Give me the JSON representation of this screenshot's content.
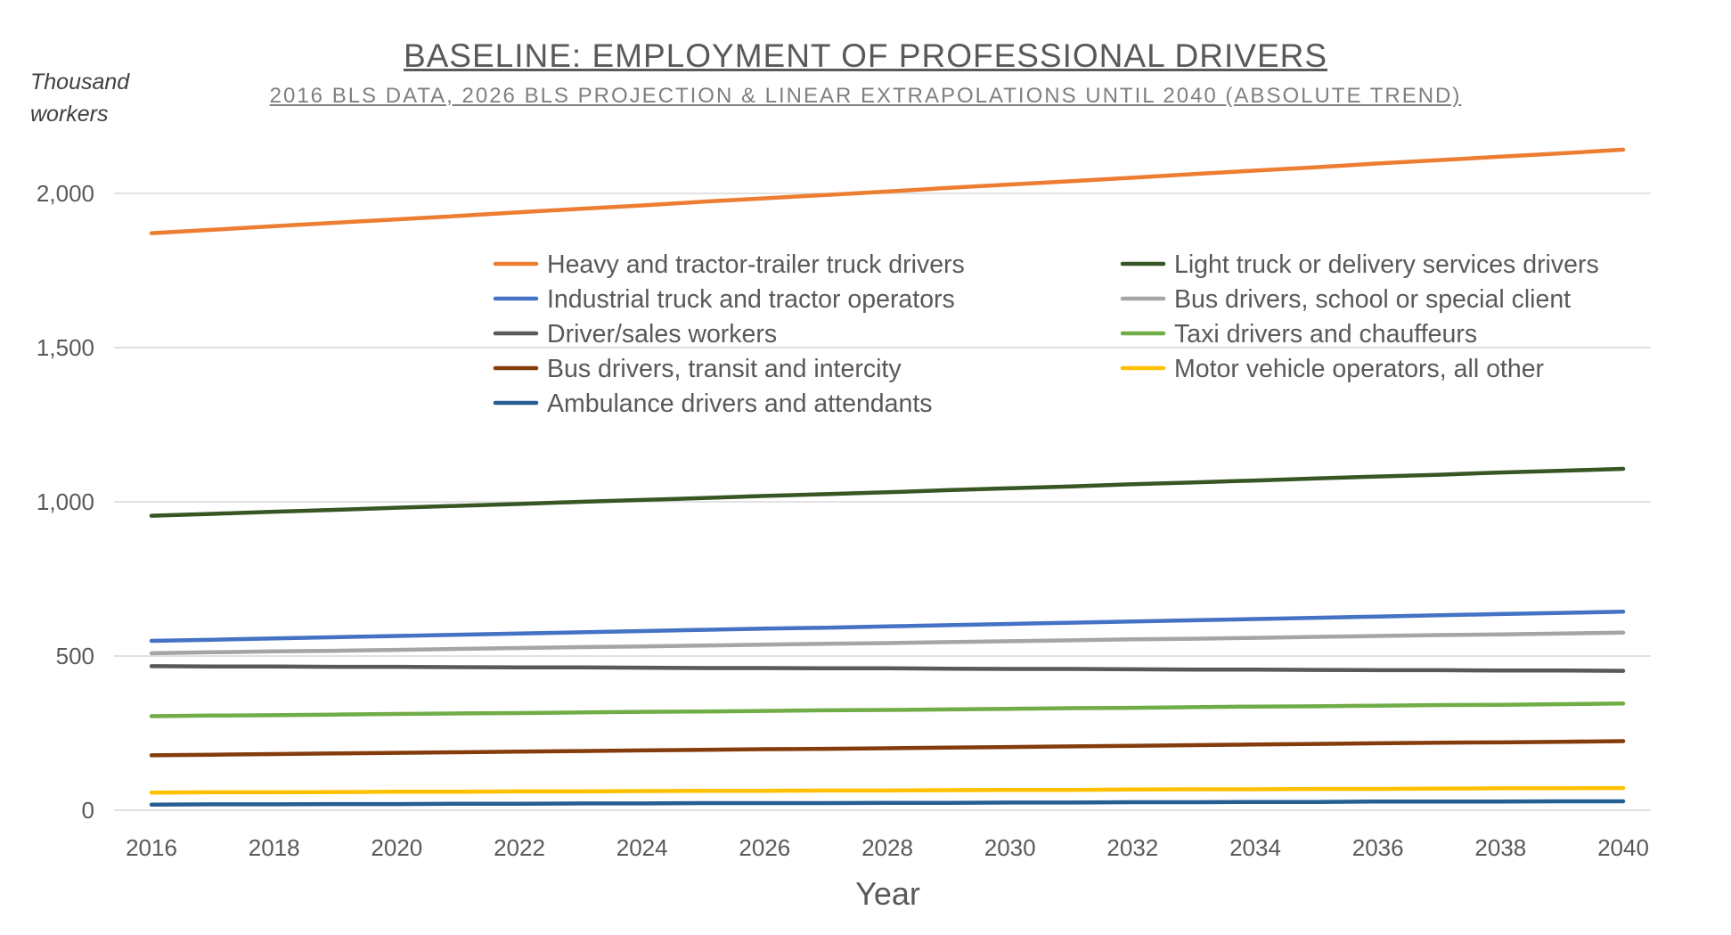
{
  "chart_data": {
    "type": "line",
    "title": "BASELINE: EMPLOYMENT OF PROFESSIONAL DRIVERS",
    "subtitle": "2016 BLS DATA, 2026 BLS PROJECTION & LINEAR EXTRAPOLATIONS UNTIL 2040 (ABSOLUTE TREND)",
    "ylabel": "Thousand workers",
    "xlabel": "Year",
    "x": [
      2016,
      2017,
      2018,
      2019,
      2020,
      2021,
      2022,
      2023,
      2024,
      2025,
      2026,
      2027,
      2028,
      2029,
      2030,
      2031,
      2032,
      2033,
      2034,
      2035,
      2036,
      2037,
      2038,
      2039,
      2040
    ],
    "xticks": [
      "2016",
      "2018",
      "2020",
      "2022",
      "2024",
      "2026",
      "2028",
      "2030",
      "2032",
      "2034",
      "2036",
      "2038",
      "2040"
    ],
    "ylim": [
      0,
      2000
    ],
    "yticks": [
      "0",
      "500",
      "1,000",
      "1,500",
      "2,000"
    ],
    "grid": true,
    "legend_position": "top-center",
    "series": [
      {
        "name": "Heavy and tractor-trailer truck drivers",
        "color": "#ED7D31",
        "values": [
          1871,
          1882,
          1894,
          1905,
          1916,
          1927,
          1939,
          1950,
          1961,
          1973,
          1984,
          1995,
          2006,
          2018,
          2029,
          2040,
          2051,
          2063,
          2074,
          2085,
          2097,
          2108,
          2119,
          2130,
          2142
        ]
      },
      {
        "name": "Light truck or delivery services drivers",
        "color": "#375623",
        "values": [
          955,
          961,
          968,
          974,
          981,
          987,
          993,
          1000,
          1006,
          1012,
          1019,
          1025,
          1031,
          1038,
          1044,
          1050,
          1057,
          1063,
          1069,
          1076,
          1082,
          1088,
          1095,
          1101,
          1107
        ]
      },
      {
        "name": "Industrial truck and tractor operators",
        "color": "#4472C4",
        "values": [
          549,
          553,
          557,
          561,
          565,
          569,
          573,
          577,
          581,
          585,
          589,
          592,
          596,
          600,
          604,
          608,
          612,
          616,
          620,
          624,
          628,
          632,
          636,
          640,
          644
        ]
      },
      {
        "name": "Bus drivers, school or special client",
        "color": "#A5A5A5",
        "values": [
          509,
          512,
          515,
          517,
          520,
          523,
          526,
          529,
          531,
          534,
          537,
          540,
          542,
          545,
          548,
          551,
          554,
          556,
          559,
          562,
          565,
          568,
          570,
          573,
          576
        ]
      },
      {
        "name": "Driver/sales workers",
        "color": "#595959",
        "values": [
          467,
          466,
          466,
          465,
          465,
          464,
          463,
          463,
          462,
          461,
          461,
          460,
          460,
          459,
          458,
          458,
          457,
          456,
          456,
          455,
          454,
          454,
          453,
          453,
          452
        ]
      },
      {
        "name": "Taxi drivers and chauffeurs",
        "color": "#70AD47",
        "values": [
          305,
          307,
          308,
          310,
          312,
          314,
          315,
          317,
          319,
          320,
          322,
          324,
          325,
          327,
          329,
          331,
          332,
          334,
          336,
          337,
          339,
          341,
          342,
          344,
          346
        ]
      },
      {
        "name": "Bus drivers, transit and intercity",
        "color": "#843C0C",
        "values": [
          178,
          180,
          182,
          184,
          186,
          188,
          190,
          192,
          194,
          196,
          198,
          199,
          201,
          203,
          205,
          207,
          209,
          211,
          213,
          215,
          217,
          219,
          220,
          222,
          224
        ]
      },
      {
        "name": "Motor vehicle operators, all other",
        "color": "#FFC000",
        "values": [
          57,
          58,
          58,
          59,
          60,
          60,
          61,
          61,
          62,
          63,
          63,
          64,
          64,
          65,
          66,
          66,
          67,
          68,
          68,
          69,
          69,
          70,
          71,
          71,
          72
        ]
      },
      {
        "name": "Ambulance drivers and attendants",
        "color": "#255E91",
        "values": [
          18,
          19,
          19,
          20,
          20,
          21,
          21,
          22,
          22,
          23,
          23,
          23,
          24,
          24,
          25,
          25,
          26,
          26,
          27,
          27,
          28,
          28,
          28,
          29,
          29
        ]
      }
    ]
  }
}
